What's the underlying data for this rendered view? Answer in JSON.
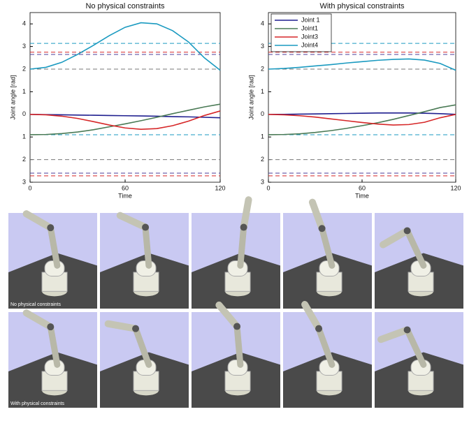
{
  "chart_data": [
    {
      "type": "line",
      "title": "No physical constraints",
      "xlabel": "Time",
      "ylabel": "Joint angle [rad]",
      "x": [
        0,
        10,
        20,
        30,
        40,
        50,
        60,
        70,
        80,
        90,
        100,
        110,
        120
      ],
      "xlim": [
        0,
        120
      ],
      "xticks": [
        0,
        60,
        120
      ],
      "ylim": [
        -3,
        4.5
      ],
      "yticks": [
        {
          "value": -3,
          "label": "3"
        },
        {
          "value": -2,
          "label": "2"
        },
        {
          "value": -1,
          "label": "1"
        },
        0,
        1,
        2,
        3,
        4
      ],
      "series": [
        {
          "color": "#1f1f8f",
          "values": [
            0,
            -0.01,
            -0.02,
            -0.03,
            -0.04,
            -0.05,
            -0.06,
            -0.07,
            -0.08,
            -0.1,
            -0.11,
            -0.13,
            -0.15
          ]
        },
        {
          "color": "#4a7a55",
          "values": [
            -0.9,
            -0.89,
            -0.85,
            -0.78,
            -0.68,
            -0.55,
            -0.42,
            -0.28,
            -0.13,
            0.03,
            0.18,
            0.33,
            0.45
          ]
        },
        {
          "color": "#d62728",
          "values": [
            0,
            -0.02,
            -0.08,
            -0.18,
            -0.32,
            -0.47,
            -0.6,
            -0.66,
            -0.63,
            -0.5,
            -0.3,
            -0.05,
            0.15
          ]
        },
        {
          "color": "#1a9ac0",
          "values": [
            2,
            2.08,
            2.3,
            2.65,
            3.05,
            3.48,
            3.85,
            4.05,
            4.0,
            3.7,
            3.2,
            2.5,
            1.95
          ]
        }
      ],
      "limits": [
        {
          "value": 3.14,
          "color": "#1a9ac0"
        },
        {
          "value": 2.75,
          "color": "#d62728"
        },
        {
          "value": 2.65,
          "color": "#4b3d9a"
        },
        {
          "value": 2.0,
          "color": "#777777"
        },
        {
          "value": -0.9,
          "color": "#1a9ac0"
        },
        {
          "value": -2.0,
          "color": "#777777"
        },
        {
          "value": -2.6,
          "color": "#4b3d9a"
        },
        {
          "value": -2.72,
          "color": "#d62728"
        }
      ]
    },
    {
      "type": "line",
      "title": "With physical constraints",
      "xlabel": "Time",
      "ylabel": "Joint angle [rad]",
      "x": [
        0,
        10,
        20,
        30,
        40,
        50,
        60,
        70,
        80,
        90,
        100,
        110,
        120
      ],
      "xlim": [
        0,
        120
      ],
      "xticks": [
        0,
        60,
        120
      ],
      "ylim": [
        -3,
        4.5
      ],
      "yticks": [
        {
          "value": -3,
          "label": "3"
        },
        {
          "value": -2,
          "label": "2"
        },
        {
          "value": -1,
          "label": "1"
        },
        0,
        1,
        2,
        3,
        4
      ],
      "legend": "upper left",
      "series": [
        {
          "name": "Joint 1",
          "color": "#1f1f8f",
          "values": [
            0,
            0,
            0.01,
            0.02,
            0.03,
            0.04,
            0.05,
            0.06,
            0.06,
            0.06,
            0.05,
            0.03,
            0
          ]
        },
        {
          "name": "Joint1",
          "color": "#4a7a55",
          "values": [
            -0.9,
            -0.89,
            -0.86,
            -0.8,
            -0.72,
            -0.62,
            -0.5,
            -0.37,
            -0.22,
            -0.05,
            0.12,
            0.3,
            0.42
          ]
        },
        {
          "name": "Joint3",
          "color": "#d62728",
          "values": [
            0,
            -0.02,
            -0.06,
            -0.12,
            -0.2,
            -0.28,
            -0.36,
            -0.43,
            -0.47,
            -0.45,
            -0.35,
            -0.15,
            0
          ]
        },
        {
          "name": "Joint4",
          "color": "#1a9ac0",
          "values": [
            2,
            2.03,
            2.08,
            2.14,
            2.2,
            2.27,
            2.33,
            2.39,
            2.43,
            2.45,
            2.4,
            2.25,
            1.95
          ]
        }
      ],
      "limits": [
        {
          "value": 3.14,
          "color": "#1a9ac0"
        },
        {
          "value": 2.75,
          "color": "#d62728"
        },
        {
          "value": 2.65,
          "color": "#4b3d9a"
        },
        {
          "value": 2.0,
          "color": "#777777"
        },
        {
          "value": -0.9,
          "color": "#1a9ac0"
        },
        {
          "value": -2.0,
          "color": "#777777"
        },
        {
          "value": -2.6,
          "color": "#4b3d9a"
        },
        {
          "value": -2.72,
          "color": "#d62728"
        }
      ]
    }
  ],
  "panels": {
    "row_labels": [
      "No physical constraints",
      "With physical constraints"
    ]
  }
}
